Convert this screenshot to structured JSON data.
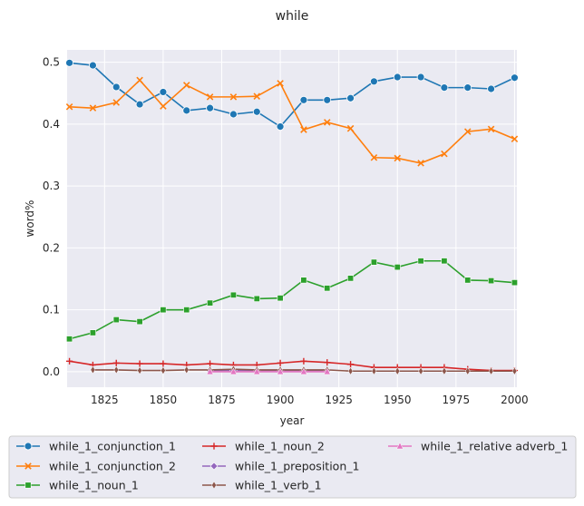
{
  "chart_data": {
    "type": "line",
    "title": "while",
    "xlabel": "year",
    "ylabel": "word%",
    "xlim": [
      1809,
      2001
    ],
    "ylim": [
      -0.025,
      0.52
    ],
    "xticks": [
      "1825",
      "1850",
      "1875",
      "1900",
      "1925",
      "1950",
      "1975",
      "2000"
    ],
    "yticks": [
      "0.0",
      "0.1",
      "0.2",
      "0.3",
      "0.4",
      "0.5"
    ],
    "grid": true,
    "legend_position": "bottom",
    "x": [
      1810,
      1820,
      1830,
      1840,
      1850,
      1860,
      1870,
      1880,
      1890,
      1900,
      1910,
      1920,
      1930,
      1940,
      1950,
      1960,
      1970,
      1980,
      1990,
      2000
    ],
    "series": [
      {
        "name": "while_1_conjunction_1",
        "color": "#1f77b4",
        "marker": "circle",
        "values": [
          0.499,
          0.495,
          0.46,
          0.432,
          0.452,
          0.422,
          0.426,
          0.416,
          0.42,
          0.396,
          0.439,
          0.439,
          0.442,
          0.469,
          0.476,
          0.476,
          0.459,
          0.459,
          0.457,
          0.475
        ]
      },
      {
        "name": "while_1_conjunction_2",
        "color": "#ff7f0e",
        "marker": "x",
        "values": [
          0.428,
          0.426,
          0.435,
          0.471,
          0.429,
          0.463,
          0.444,
          0.444,
          0.445,
          0.466,
          0.391,
          0.403,
          0.393,
          0.346,
          0.345,
          0.337,
          0.352,
          0.388,
          0.392,
          0.376
        ]
      },
      {
        "name": "while_1_noun_1",
        "color": "#2ca02c",
        "marker": "square",
        "values": [
          0.053,
          0.063,
          0.084,
          0.081,
          0.1,
          0.1,
          0.111,
          0.124,
          0.118,
          0.119,
          0.148,
          0.135,
          0.151,
          0.177,
          0.169,
          0.179,
          0.179,
          0.148,
          0.147,
          0.144
        ]
      },
      {
        "name": "while_1_noun_2",
        "color": "#d62728",
        "marker": "plus",
        "values": [
          0.017,
          0.011,
          0.014,
          0.013,
          0.013,
          0.011,
          0.013,
          0.011,
          0.011,
          0.014,
          0.017,
          0.015,
          0.012,
          0.007,
          0.007,
          0.007,
          0.007,
          0.004,
          0.002,
          0.002
        ]
      },
      {
        "name": "while_1_preposition_1",
        "color": "#9467bd",
        "marker": "diamond",
        "x": [
          1870,
          1880,
          1890,
          1900,
          1910,
          1920
        ],
        "values": [
          0.002,
          0.002,
          0.002,
          0.002,
          0.002,
          0.002
        ]
      },
      {
        "name": "while_1_verb_1",
        "color": "#8c564b",
        "marker": "thin-diamond",
        "x": [
          1820,
          1830,
          1840,
          1850,
          1860,
          1870,
          1880,
          1890,
          1900,
          1910,
          1920,
          1930,
          1940,
          1950,
          1960,
          1970,
          1980,
          1990,
          2000
        ],
        "values": [
          0.003,
          0.003,
          0.002,
          0.002,
          0.003,
          0.003,
          0.004,
          0.003,
          0.003,
          0.003,
          0.003,
          0.001,
          0.001,
          0.001,
          0.001,
          0.001,
          0.001,
          0.001,
          0.001
        ]
      },
      {
        "name": "while_1_relative adverb_1",
        "color": "#e377c2",
        "marker": "triangle",
        "x": [
          1870,
          1880,
          1890,
          1900,
          1910,
          1920
        ],
        "values": [
          0.0,
          0.0,
          0.0,
          0.0,
          0.0,
          0.0
        ]
      }
    ]
  }
}
